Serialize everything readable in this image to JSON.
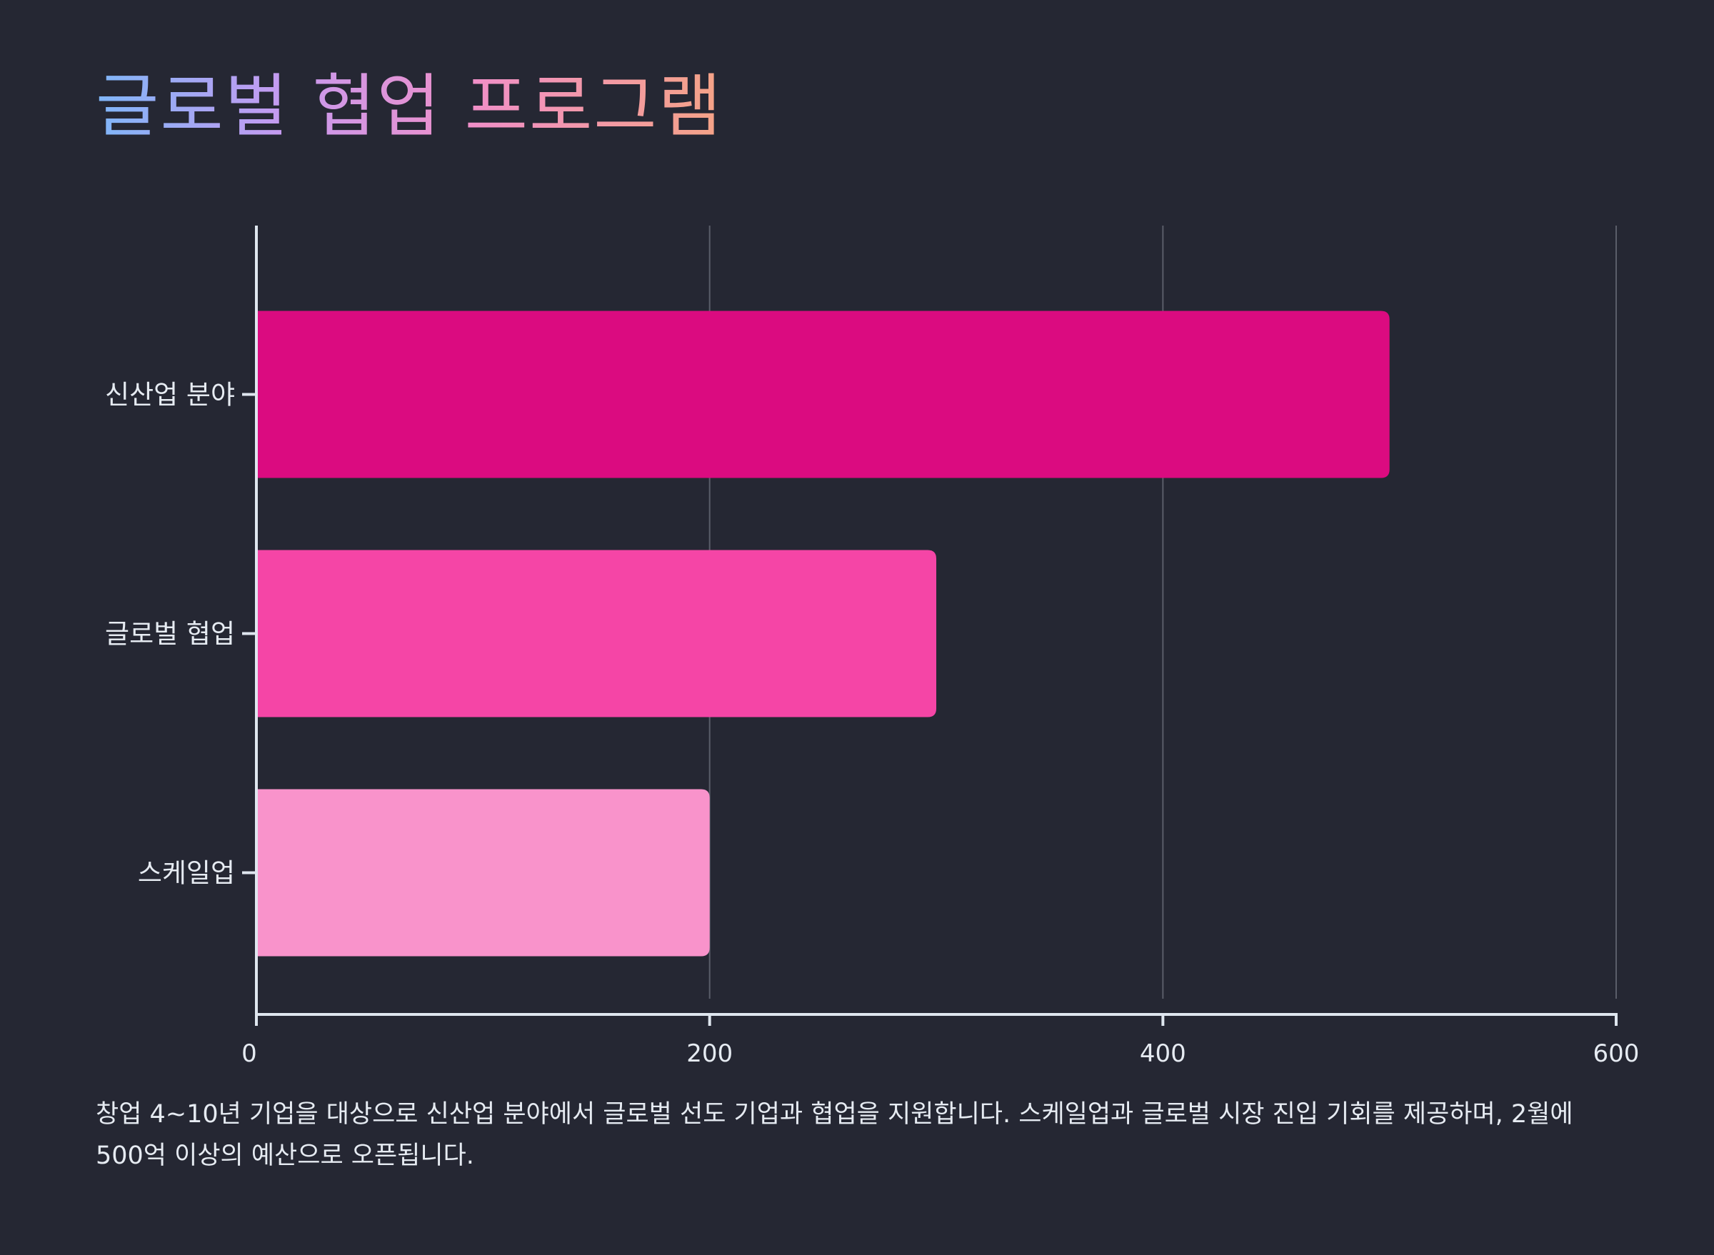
{
  "title": "글로벌 협업 프로그램",
  "description": "창업 4~10년 기업을 대상으로 신산업 분야에서 글로벌 선도 기업과 협업을 지원합니다. 스케일업과 글로벌 시장 진입 기회를 제공하며, 2월에 500억 이상의 예산으로 오픈됩니다.",
  "colors": {
    "background": "#252733",
    "axis": "#dfe6ef",
    "grid": "#5a5d69"
  },
  "chart_data": {
    "type": "bar",
    "orientation": "horizontal",
    "categories": [
      "신산업 분야",
      "글로벌 협업",
      "스케일업"
    ],
    "values": [
      500,
      300,
      200
    ],
    "bar_colors": [
      "#db0b80",
      "#f545a6",
      "#f993cb"
    ],
    "xlim": [
      0,
      600
    ],
    "x_ticks": [
      "0",
      "200",
      "400",
      "600"
    ],
    "grid": "vertical",
    "xlabel": "",
    "ylabel": ""
  }
}
